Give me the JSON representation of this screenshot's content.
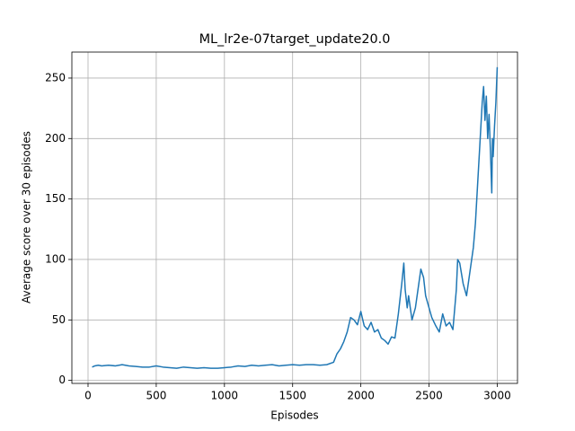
{
  "chart_data": {
    "type": "line",
    "title": "ML_lr2e-07target_update20.0",
    "x_label": "Episodes",
    "y_label": "Average score over 30 episodes",
    "x": [
      30,
      50,
      75,
      100,
      150,
      200,
      250,
      300,
      350,
      400,
      450,
      500,
      550,
      600,
      650,
      700,
      750,
      800,
      850,
      900,
      950,
      1000,
      1050,
      1100,
      1150,
      1200,
      1250,
      1300,
      1350,
      1400,
      1450,
      1500,
      1550,
      1600,
      1650,
      1700,
      1750,
      1800,
      1825,
      1850,
      1875,
      1900,
      1925,
      1950,
      1975,
      2000,
      2010,
      2025,
      2050,
      2075,
      2100,
      2125,
      2150,
      2175,
      2200,
      2225,
      2250,
      2275,
      2300,
      2315,
      2325,
      2340,
      2350,
      2375,
      2400,
      2425,
      2440,
      2460,
      2475,
      2500,
      2520,
      2550,
      2575,
      2600,
      2625,
      2650,
      2675,
      2700,
      2710,
      2725,
      2750,
      2775,
      2800,
      2825,
      2840,
      2860,
      2875,
      2890,
      2900,
      2910,
      2920,
      2930,
      2940,
      2950,
      2960,
      2965,
      2970,
      2980,
      2990,
      3000
    ],
    "series": [
      {
        "color": "#1f77b4",
        "values": [
          11,
          12,
          12.5,
          12,
          12.5,
          12,
          13,
          12,
          11.5,
          11,
          11,
          12,
          11,
          10.5,
          10,
          11,
          10.5,
          10,
          10.5,
          10,
          10,
          10.5,
          11,
          12,
          11.5,
          12.5,
          12,
          12.5,
          13,
          12,
          12.5,
          13,
          12.5,
          13,
          13,
          12.5,
          13,
          15,
          22,
          26,
          32,
          40,
          52,
          50,
          46,
          57,
          52,
          45,
          42,
          48,
          40,
          42,
          35,
          33,
          30,
          36,
          35,
          55,
          80,
          97,
          75,
          60,
          70,
          50,
          60,
          80,
          92,
          85,
          70,
          60,
          52,
          45,
          40,
          55,
          45,
          48,
          42,
          75,
          100,
          97,
          80,
          70,
          90,
          110,
          130,
          170,
          200,
          230,
          243,
          215,
          235,
          200,
          220,
          190,
          155,
          200,
          185,
          210,
          230,
          259
        ]
      }
    ],
    "xlim": [
      -118.5,
      3148.5
    ],
    "ylim": [
      -2.5,
      271.5
    ],
    "xticks": [
      0,
      500,
      1000,
      1500,
      2000,
      2500,
      3000
    ],
    "yticks": [
      0,
      50,
      100,
      150,
      200,
      250
    ],
    "grid": true
  }
}
